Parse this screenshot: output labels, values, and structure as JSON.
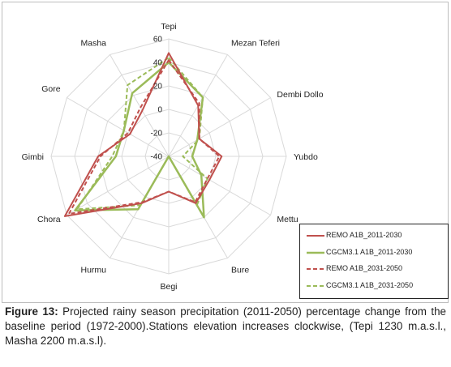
{
  "chart_data": {
    "type": "radar",
    "axes": [
      "Tepi",
      "Mezan Teferi",
      "Dembi Dollo",
      "Yubdo",
      "Mettu",
      "Bure",
      "Begi",
      "Hurmu",
      "Chora",
      "Gimbi",
      "Gore",
      "Masha"
    ],
    "rlim": [
      -40,
      60
    ],
    "ticks": [
      -40,
      -20,
      0,
      20,
      40,
      60
    ],
    "tick_labels": [
      "-40",
      "-20",
      "0",
      "20",
      "40",
      "60"
    ],
    "grid": true,
    "legend_position": "bottom-right",
    "series": [
      {
        "name": "REMO A1B_2011-2030",
        "color": "#c0504d",
        "dash": "solid",
        "values": [
          48,
          10,
          -10,
          5,
          0,
          6,
          -10,
          6,
          62,
          20,
          -2,
          5
        ]
      },
      {
        "name": "CGCM3.1 A1B_2011-2030",
        "color": "#9bbb59",
        "dash": "solid",
        "values": [
          40,
          18,
          -12,
          -20,
          -8,
          20,
          -40,
          12,
          52,
          5,
          4,
          22
        ]
      },
      {
        "name": "REMO A1B_2031-2050",
        "color": "#c0504d",
        "dash": "dash",
        "values": [
          42,
          12,
          -10,
          3,
          -2,
          5,
          -10,
          5,
          58,
          18,
          0,
          8
        ]
      },
      {
        "name": "CGCM3.1 A1B_2031-2050",
        "color": "#9bbb59",
        "dash": "dash",
        "values": [
          44,
          18,
          -10,
          -28,
          -2,
          8,
          -40,
          8,
          50,
          8,
          4,
          30
        ]
      }
    ]
  },
  "caption": {
    "label": "Figure 13:",
    "text": " Projected rainy season precipitation (2011-2050) percentage change from the baseline period (1972-2000).Stations elevation increases clockwise, (Tepi 1230 m.a.s.l., Masha 2200 m.a.s.l)."
  }
}
